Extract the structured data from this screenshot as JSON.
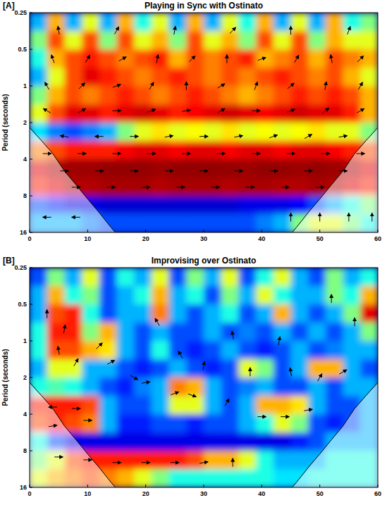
{
  "chart_data": [
    {
      "type": "heatmap",
      "panel_label": "[A]",
      "title": "Playing in Sync with Ostinato",
      "y_label": "Period (seconds)",
      "xlim": [
        0,
        60
      ],
      "xticks": [
        0,
        10,
        20,
        30,
        40,
        50,
        60
      ],
      "ylim": [
        0.25,
        16
      ],
      "yticks": [
        0.25,
        0.5,
        1,
        2,
        4,
        8,
        16
      ],
      "log": "y",
      "zlim": [
        0,
        1
      ],
      "cells": [
        [
          0.3,
          0.7,
          0.3,
          0.6,
          0.3,
          0.7,
          0.4,
          0.6,
          0.3,
          0.7,
          0.3,
          0.6,
          0.4,
          0.7,
          0.3,
          0.6,
          0.3,
          0.7,
          0.4,
          0.5
        ],
        [
          0.5,
          0.8,
          0.6,
          0.8,
          0.5,
          0.8,
          0.6,
          0.7,
          0.5,
          0.8,
          0.6,
          0.7,
          0.5,
          0.8,
          0.6,
          0.8,
          0.5,
          0.7,
          0.6,
          0.6
        ],
        [
          0.4,
          0.7,
          0.8,
          0.85,
          0.8,
          0.75,
          0.8,
          0.85,
          0.7,
          0.8,
          0.75,
          0.8,
          0.85,
          0.7,
          0.75,
          0.8,
          0.7,
          0.8,
          0.75,
          0.7
        ],
        [
          0.3,
          0.6,
          0.8,
          0.9,
          0.85,
          0.8,
          0.75,
          0.8,
          0.85,
          0.8,
          0.75,
          0.8,
          0.75,
          0.8,
          0.85,
          0.8,
          0.75,
          0.8,
          0.7,
          0.6
        ],
        [
          0.5,
          0.7,
          0.8,
          0.75,
          0.8,
          0.85,
          0.8,
          0.75,
          0.8,
          0.85,
          0.8,
          0.75,
          0.7,
          0.75,
          0.8,
          0.85,
          0.8,
          0.85,
          0.8,
          0.7
        ],
        [
          0.6,
          0.8,
          0.9,
          0.9,
          0.85,
          0.9,
          0.92,
          0.9,
          0.85,
          0.88,
          0.9,
          0.92,
          0.9,
          0.88,
          0.9,
          0.92,
          0.9,
          0.9,
          0.85,
          0.7
        ],
        [
          0.35,
          0.25,
          0.2,
          0.25,
          0.3,
          0.5,
          0.6,
          0.65,
          0.6,
          0.62,
          0.6,
          0.65,
          0.6,
          0.62,
          0.6,
          0.62,
          0.65,
          0.6,
          0.6,
          0.5
        ],
        [
          0.75,
          0.8,
          0.85,
          0.85,
          0.85,
          0.88,
          0.9,
          0.9,
          0.88,
          0.9,
          0.9,
          0.88,
          0.9,
          0.9,
          0.88,
          0.9,
          0.9,
          0.88,
          0.85,
          0.8
        ],
        [
          0.9,
          0.95,
          0.97,
          0.97,
          0.98,
          0.98,
          0.98,
          0.97,
          0.98,
          0.98,
          0.98,
          0.98,
          0.97,
          0.98,
          0.98,
          0.97,
          0.98,
          0.97,
          0.95,
          0.9
        ],
        [
          0.85,
          0.9,
          0.95,
          0.95,
          0.96,
          0.96,
          0.96,
          0.95,
          0.96,
          0.96,
          0.96,
          0.95,
          0.96,
          0.96,
          0.95,
          0.95,
          0.96,
          0.95,
          0.9,
          0.85
        ],
        [
          0.2,
          0.15,
          0.1,
          0.1,
          0.08,
          0.08,
          0.08,
          0.08,
          0.08,
          0.08,
          0.08,
          0.08,
          0.1,
          0.1,
          0.1,
          0.12,
          0.2,
          0.3,
          0.4,
          0.5
        ],
        [
          0.3,
          0.3,
          0.3,
          0.25,
          0.2,
          0.2,
          0.2,
          0.2,
          0.2,
          0.2,
          0.2,
          0.2,
          0.2,
          0.25,
          0.3,
          0.5,
          0.6,
          0.6,
          0.5,
          0.4
        ]
      ],
      "coi": {
        "x": [
          0,
          2,
          4,
          6,
          8,
          10,
          12,
          14,
          15,
          45,
          46,
          48,
          50,
          52,
          54,
          56,
          58,
          60
        ],
        "period": [
          2.2,
          2.8,
          3.6,
          5,
          6.5,
          8.5,
          11,
          14.5,
          16.5,
          16.5,
          14.5,
          11,
          8.5,
          6.5,
          5,
          3.6,
          2.8,
          2.2
        ]
      },
      "arrows": [
        [
          5,
          0.35,
          100
        ],
        [
          15,
          0.35,
          60
        ],
        [
          25,
          0.35,
          80
        ],
        [
          35,
          0.35,
          45
        ],
        [
          45,
          0.35,
          90
        ],
        [
          55,
          0.35,
          70
        ],
        [
          4,
          0.6,
          110
        ],
        [
          10,
          0.6,
          60
        ],
        [
          16,
          0.6,
          30
        ],
        [
          22,
          0.6,
          80
        ],
        [
          28,
          0.6,
          45
        ],
        [
          34,
          0.6,
          90
        ],
        [
          40,
          0.6,
          20
        ],
        [
          46,
          0.6,
          60
        ],
        [
          52,
          0.6,
          100
        ],
        [
          57,
          0.6,
          45
        ],
        [
          3,
          1,
          120
        ],
        [
          9,
          1,
          45
        ],
        [
          15,
          1,
          20
        ],
        [
          21,
          1,
          60
        ],
        [
          27,
          1,
          90
        ],
        [
          33,
          1,
          30
        ],
        [
          39,
          1,
          70
        ],
        [
          45,
          1,
          40
        ],
        [
          51,
          1,
          80
        ],
        [
          57,
          1,
          60
        ],
        [
          3,
          1.6,
          150
        ],
        [
          9,
          1.6,
          30
        ],
        [
          15,
          1.6,
          0
        ],
        [
          21,
          1.6,
          20
        ],
        [
          27,
          1.6,
          10
        ],
        [
          33,
          1.6,
          30
        ],
        [
          39,
          1.6,
          0
        ],
        [
          45,
          1.6,
          20
        ],
        [
          51,
          1.6,
          40
        ],
        [
          57,
          1.6,
          30
        ],
        [
          6,
          2.6,
          170
        ],
        [
          12,
          2.6,
          180
        ],
        [
          18,
          2.6,
          0
        ],
        [
          24,
          2.6,
          10
        ],
        [
          30,
          2.6,
          0
        ],
        [
          36,
          2.6,
          10
        ],
        [
          42,
          2.6,
          20
        ],
        [
          48,
          2.6,
          30
        ],
        [
          54,
          2.6,
          10
        ],
        [
          3,
          3.6,
          0
        ],
        [
          9,
          3.6,
          0
        ],
        [
          15,
          3.6,
          0
        ],
        [
          21,
          3.6,
          0
        ],
        [
          27,
          3.6,
          0
        ],
        [
          33,
          3.6,
          0
        ],
        [
          39,
          3.6,
          0
        ],
        [
          45,
          3.6,
          0
        ],
        [
          51,
          3.6,
          0
        ],
        [
          57,
          3.6,
          0
        ],
        [
          6,
          5,
          0
        ],
        [
          12,
          5,
          0
        ],
        [
          18,
          5,
          0
        ],
        [
          24,
          5,
          0
        ],
        [
          30,
          5,
          0
        ],
        [
          36,
          5,
          0
        ],
        [
          42,
          5,
          0
        ],
        [
          48,
          5,
          0
        ],
        [
          54,
          5,
          0
        ],
        [
          8,
          6.8,
          0
        ],
        [
          14,
          6.8,
          0
        ],
        [
          20,
          6.8,
          0
        ],
        [
          26,
          6.8,
          0
        ],
        [
          32,
          6.8,
          0
        ],
        [
          38,
          6.8,
          0
        ],
        [
          44,
          6.8,
          0
        ],
        [
          50,
          6.8,
          0
        ],
        [
          3,
          12,
          180
        ],
        [
          8,
          12,
          180
        ],
        [
          45,
          12,
          90
        ],
        [
          50,
          12,
          90
        ],
        [
          55,
          12,
          90
        ],
        [
          59,
          12,
          90
        ]
      ]
    },
    {
      "type": "heatmap",
      "panel_label": "[B]",
      "title": "Improvising over Ostinato",
      "y_label": "Period (seconds)",
      "xlim": [
        0,
        60
      ],
      "xticks": [
        0,
        10,
        20,
        30,
        40,
        50,
        60
      ],
      "ylim": [
        0.25,
        16
      ],
      "yticks": [
        0.25,
        0.5,
        1,
        2,
        4,
        8,
        16
      ],
      "log": "y",
      "zlim": [
        0,
        1
      ],
      "cells": [
        [
          0.2,
          0.5,
          0.3,
          0.6,
          0.2,
          0.4,
          0.3,
          0.6,
          0.2,
          0.5,
          0.3,
          0.6,
          0.2,
          0.4,
          0.6,
          0.3,
          0.2,
          0.5,
          0.3,
          0.4
        ],
        [
          0.3,
          0.7,
          0.4,
          0.5,
          0.2,
          0.3,
          0.4,
          0.7,
          0.3,
          0.4,
          0.2,
          0.5,
          0.3,
          0.6,
          0.4,
          0.3,
          0.3,
          0.5,
          0.4,
          0.7
        ],
        [
          0.3,
          0.8,
          0.85,
          0.4,
          0.2,
          0.3,
          0.3,
          0.75,
          0.3,
          0.2,
          0.3,
          0.4,
          0.2,
          0.3,
          0.7,
          0.3,
          0.2,
          0.3,
          0.5,
          0.9
        ],
        [
          0.4,
          0.85,
          0.85,
          0.5,
          0.7,
          0.3,
          0.2,
          0.3,
          0.2,
          0.2,
          0.3,
          0.2,
          0.25,
          0.2,
          0.3,
          0.2,
          0.3,
          0.2,
          0.3,
          0.5
        ],
        [
          0.4,
          0.8,
          0.8,
          0.7,
          0.65,
          0.3,
          0.2,
          0.4,
          0.2,
          0.15,
          0.2,
          0.3,
          0.2,
          0.15,
          0.2,
          0.3,
          0.2,
          0.25,
          0.3,
          0.3
        ],
        [
          0.3,
          0.6,
          0.6,
          0.3,
          0.3,
          0.2,
          0.15,
          0.2,
          0.3,
          0.2,
          0.15,
          0.2,
          0.6,
          0.5,
          0.2,
          0.3,
          0.7,
          0.7,
          0.3,
          0.2
        ],
        [
          0.4,
          0.45,
          0.4,
          0.3,
          0.2,
          0.15,
          0.25,
          0.3,
          0.75,
          0.7,
          0.3,
          0.2,
          0.25,
          0.3,
          0.2,
          0.2,
          0.3,
          0.2,
          0.3,
          0.3
        ],
        [
          0.85,
          0.85,
          0.85,
          0.8,
          0.3,
          0.2,
          0.2,
          0.3,
          0.6,
          0.6,
          0.3,
          0.2,
          0.3,
          0.7,
          0.7,
          0.65,
          0.3,
          0.2,
          0.2,
          0.3
        ],
        [
          0.8,
          0.85,
          0.8,
          0.75,
          0.3,
          0.15,
          0.15,
          0.2,
          0.2,
          0.15,
          0.2,
          0.2,
          0.3,
          0.4,
          0.6,
          0.5,
          0.2,
          0.15,
          0.2,
          0.3
        ],
        [
          0.4,
          0.2,
          0.1,
          0.1,
          0.1,
          0.1,
          0.1,
          0.1,
          0.1,
          0.1,
          0.1,
          0.1,
          0.1,
          0.1,
          0.1,
          0.15,
          0.2,
          0.3,
          0.3,
          0.3
        ],
        [
          0.5,
          0.6,
          0.8,
          0.85,
          0.85,
          0.85,
          0.85,
          0.85,
          0.85,
          0.8,
          0.7,
          0.7,
          0.6,
          0.4,
          0.3,
          0.3,
          0.3,
          0.4,
          0.4,
          0.4
        ],
        [
          0.6,
          0.7,
          0.75,
          0.8,
          0.75,
          0.7,
          0.6,
          0.5,
          0.4,
          0.4,
          0.4,
          0.4,
          0.4,
          0.4,
          0.35,
          0.35,
          0.4,
          0.4,
          0.4,
          0.4
        ]
      ],
      "coi": {
        "x": [
          0,
          2,
          4,
          6,
          8,
          10,
          12,
          14,
          15,
          45,
          46,
          48,
          50,
          52,
          54,
          56,
          58,
          60
        ],
        "period": [
          2.2,
          2.8,
          3.6,
          5,
          6.5,
          8.5,
          11,
          14.5,
          16.5,
          16.5,
          14.5,
          11,
          8.5,
          6.5,
          5,
          3.6,
          2.8,
          2.2
        ]
      },
      "arrows": [
        [
          3,
          0.6,
          90
        ],
        [
          6,
          0.8,
          80
        ],
        [
          5,
          1.2,
          100
        ],
        [
          8,
          1.5,
          60
        ],
        [
          12,
          1.1,
          45
        ],
        [
          14,
          1.5,
          30
        ],
        [
          4,
          3.5,
          180
        ],
        [
          8,
          3.6,
          0
        ],
        [
          10,
          4.5,
          0
        ],
        [
          4,
          5,
          10
        ],
        [
          20,
          2.2,
          10
        ],
        [
          25,
          2.7,
          20
        ],
        [
          28,
          2.8,
          -20
        ],
        [
          34,
          3.2,
          60
        ],
        [
          40,
          4.2,
          0
        ],
        [
          44,
          4.2,
          0
        ],
        [
          48,
          3.7,
          10
        ],
        [
          38,
          1.8,
          90
        ],
        [
          45,
          1.8,
          100
        ],
        [
          50,
          2,
          60
        ],
        [
          54,
          1.8,
          30
        ],
        [
          56,
          0.7,
          90
        ],
        [
          43,
          1,
          80
        ],
        [
          30,
          1.6,
          80
        ],
        [
          22,
          0.7,
          120
        ],
        [
          35,
          0.9,
          100
        ],
        [
          5,
          9,
          0
        ],
        [
          10,
          9.5,
          0
        ],
        [
          15,
          10,
          0
        ],
        [
          20,
          10,
          0
        ],
        [
          25,
          10,
          0
        ],
        [
          30,
          10,
          10
        ],
        [
          35,
          10,
          90
        ],
        [
          18,
          2,
          -30
        ],
        [
          26,
          1.3,
          120
        ],
        [
          52,
          0.45,
          90
        ]
      ]
    }
  ]
}
